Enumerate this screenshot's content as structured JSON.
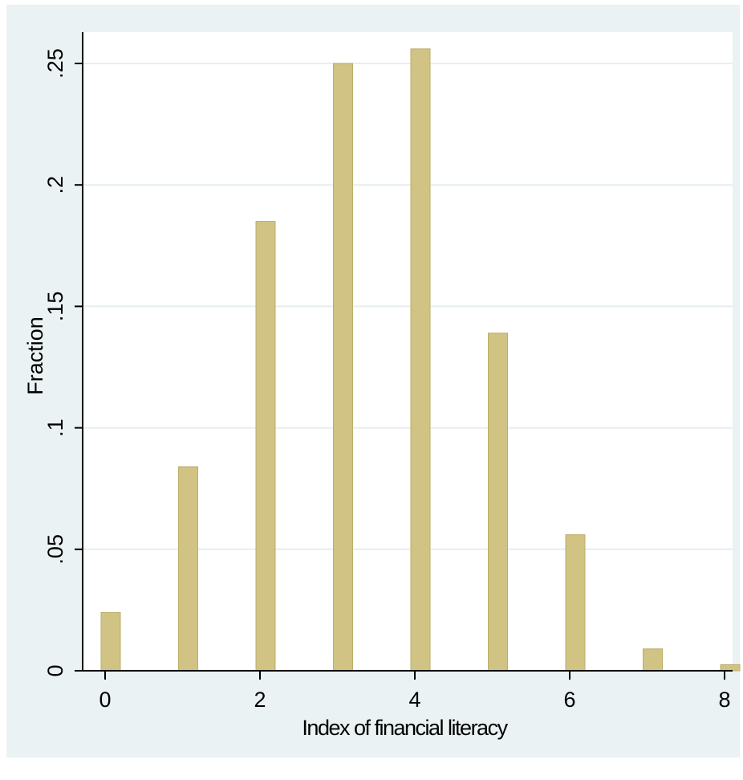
{
  "chart_data": {
    "type": "bar",
    "title": "",
    "xlabel": "Index of financial literacy",
    "ylabel": "Fraction",
    "x": [
      0,
      1,
      2,
      3,
      4,
      5,
      6,
      7,
      8
    ],
    "values": [
      0.024,
      0.084,
      0.185,
      0.25,
      0.256,
      0.139,
      0.056,
      0.009,
      0.0025
    ],
    "xlim": [
      0,
      8
    ],
    "ylim": [
      0,
      0.25
    ],
    "xticks": [
      0,
      2,
      4,
      6,
      8
    ],
    "xtick_labels": [
      "0",
      "2",
      "4",
      "6",
      "8"
    ],
    "yticks": [
      0,
      0.05,
      0.1,
      0.15,
      0.2,
      0.25
    ],
    "ytick_labels": [
      "0",
      ".05",
      ".1",
      ".15",
      ".2",
      ".25"
    ],
    "grid": true,
    "legend": "none",
    "colors": {
      "outer_background": "#eaf2f3",
      "plot_background": "#ffffff",
      "bar_fill": "#d0c383",
      "bar_edge": "#bcae6a",
      "grid": "#e6eef0",
      "axis": "#000000"
    }
  }
}
